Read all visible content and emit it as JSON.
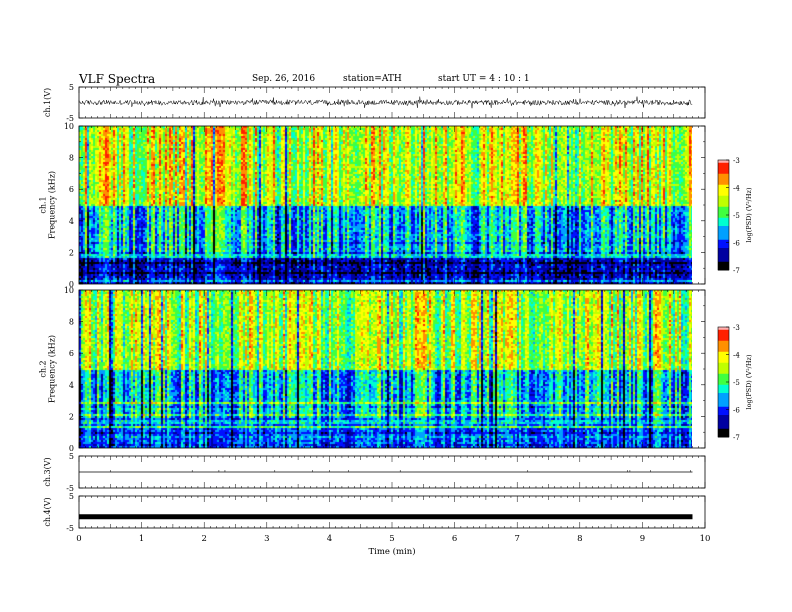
{
  "header": {
    "title": "VLF  Spectra",
    "date": "Sep. 26, 2016",
    "station": "station=ATH",
    "start": "start  UT  =   4  : 10 : 1"
  },
  "chart_data": [
    {
      "type": "line",
      "panel": "ch1-waveform",
      "ylabel": "ch.1(V)",
      "ylim": [
        -5,
        5
      ],
      "yticks": [
        "5",
        "-5"
      ],
      "note": "dense noisy waveform, amplitude roughly +/-1.5 V"
    },
    {
      "type": "heatmap",
      "panel": "ch1-spectrogram",
      "ylabel": "ch.1\nFrequency (kHz)",
      "ylim": [
        0,
        10
      ],
      "yticks": [
        "0",
        "2",
        "4",
        "6",
        "8",
        "10"
      ],
      "colorbar": {
        "label": "log(PSD) (V²/Hz)",
        "range": [
          -7,
          -3
        ],
        "ticks": [
          "-3",
          "-4",
          "-5",
          "-6",
          "-7"
        ]
      },
      "description_levels": [
        {
          "band_khz": [
            0,
            2
          ],
          "level": -6.2
        },
        {
          "band_khz": [
            2,
            5
          ],
          "level": -5.3
        },
        {
          "band_khz": [
            5,
            10
          ],
          "level": -4.2
        }
      ]
    },
    {
      "type": "heatmap",
      "panel": "ch2-spectrogram",
      "ylabel": "ch.2\nFrequency (kHz)",
      "ylim": [
        0,
        10
      ],
      "yticks": [
        "0",
        "2",
        "4",
        "6",
        "8",
        "10"
      ],
      "colorbar": {
        "label": "log(PSD) (V²/Hz)",
        "range": [
          -7,
          -3
        ],
        "ticks": [
          "-3",
          "-4",
          "-5",
          "-6",
          "-7"
        ]
      },
      "description_levels": [
        {
          "band_khz": [
            0,
            2
          ],
          "level": -5.8
        },
        {
          "band_khz": [
            2,
            5
          ],
          "level": -5.4
        },
        {
          "band_khz": [
            5,
            10
          ],
          "level": -4.4
        }
      ]
    },
    {
      "type": "line",
      "panel": "ch3-waveform",
      "ylabel": "ch.3(V)",
      "ylim": [
        -5,
        5
      ],
      "yticks": [
        "5",
        "-5"
      ],
      "values_note": "flat near 0 V"
    },
    {
      "type": "line",
      "panel": "ch4-waveform",
      "ylabel": "ch.4(V)",
      "ylim": [
        -5,
        5
      ],
      "yticks": [
        "5",
        "-5"
      ],
      "values_note": "thick flat line near -1.5 V"
    }
  ],
  "xaxis": {
    "label": "Time  (min)",
    "range": [
      0,
      10
    ],
    "ticks": [
      "0",
      "1",
      "2",
      "3",
      "4",
      "5",
      "6",
      "7",
      "8",
      "9",
      "10"
    ],
    "data_end": 9.8
  },
  "colormap": [
    "#000000",
    "#0000a0",
    "#0010ff",
    "#00a0ff",
    "#00ffd0",
    "#40ff40",
    "#c0ff00",
    "#ffff00",
    "#ff9000",
    "#ff2000",
    "#ffb0b0",
    "#ffffff"
  ]
}
